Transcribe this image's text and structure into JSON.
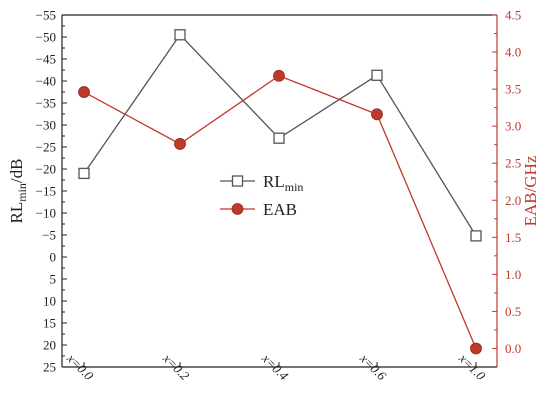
{
  "chart_data": {
    "type": "line",
    "categories": [
      "x=0.0",
      "x=0.2",
      "x=0.4",
      "x=0.6",
      "x=1.0"
    ],
    "y_left": {
      "label_main": "RL",
      "label_sub": "min",
      "label_tail": "/dB",
      "range": [
        25,
        -55
      ],
      "ticks": [
        25,
        20,
        15,
        10,
        5,
        0,
        -5,
        -10,
        -15,
        -20,
        -25,
        -30,
        -35,
        -40,
        -45,
        -50,
        -55
      ],
      "tick_labels": [
        "25",
        "20",
        "15",
        "10",
        "5",
        "0",
        "−5",
        "−10",
        "−15",
        "−20",
        "−25",
        "−30",
        "−35",
        "−40",
        "−45",
        "−50",
        "−55"
      ]
    },
    "y_right": {
      "label": "EAB/GHz",
      "range": [
        -0.25,
        4.5
      ],
      "ticks": [
        0.0,
        0.5,
        1.0,
        1.5,
        2.0,
        2.5,
        3.0,
        3.5,
        4.0,
        4.5
      ],
      "tick_labels": [
        "0.0",
        "0.5",
        "1.0",
        "1.5",
        "2.0",
        "2.5",
        "3.0",
        "3.5",
        "4.0",
        "4.5"
      ]
    },
    "series": [
      {
        "name_main": "RL",
        "name_sub": "min",
        "axis": "left",
        "color": "#555555",
        "marker": "open-square",
        "values": [
          -19.0,
          -50.5,
          -27.0,
          -41.3,
          -4.8
        ]
      },
      {
        "name": "EAB",
        "axis": "right",
        "color": "#c0392b",
        "marker": "filled-circle",
        "values": [
          3.46,
          2.76,
          3.68,
          3.16,
          0.0
        ]
      }
    ],
    "legend_position": "center",
    "grid": false
  }
}
